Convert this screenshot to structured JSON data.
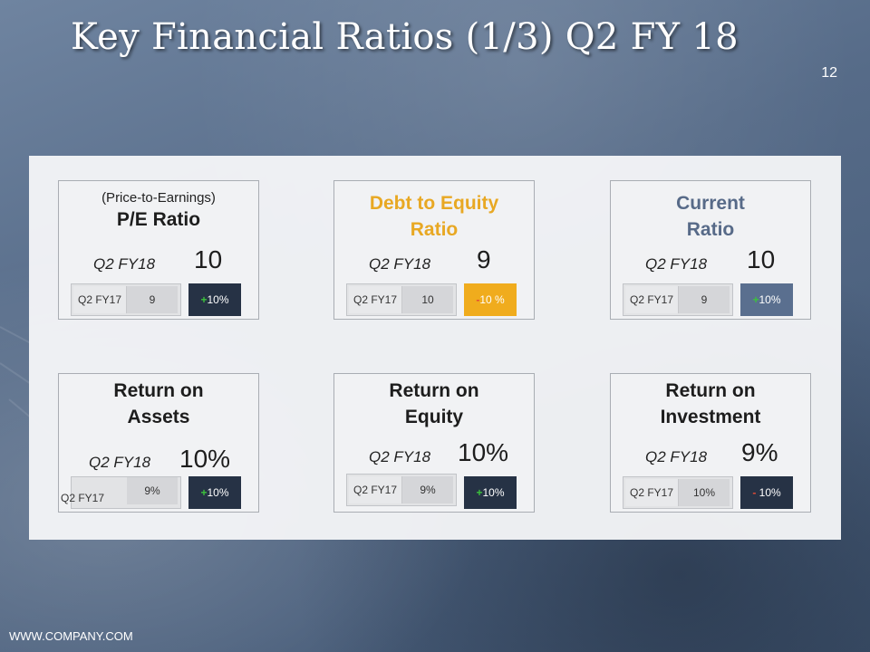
{
  "slide": {
    "title": "Key Financial Ratios (1/3) Q2 FY 18",
    "page_number": "12",
    "footer": "WWW.COMPANY.COM"
  },
  "cards": [
    {
      "subtitle": "(Price-to-Earnings)",
      "title": "P/E Ratio",
      "current_label": "Q2 FY18",
      "current_value": "10",
      "previous_label": "Q2 FY17",
      "previous_value": "9",
      "change_sign": "+",
      "change_value": "10%"
    },
    {
      "title": "Debt to Equity\nRatio",
      "current_label": "Q2 FY18",
      "current_value": "9",
      "previous_label": "Q2 FY17",
      "previous_value": "10",
      "change_sign": "-",
      "change_value": "10 %"
    },
    {
      "title": "Current\nRatio",
      "current_label": "Q2 FY18",
      "current_value": "10",
      "previous_label": "Q2 FY17",
      "previous_value": "9",
      "change_sign": "+",
      "change_value": "10%"
    },
    {
      "title": "Return on\nAssets",
      "current_label": "Q2 FY18",
      "current_value": "10%",
      "previous_label": "Q2 FY17",
      "previous_value": "9%",
      "change_sign": "+",
      "change_value": "10%"
    },
    {
      "title": "Return on\nEquity",
      "current_label": "Q2 FY18",
      "current_value": "10%",
      "previous_label": "Q2 FY17",
      "previous_value": "9%",
      "change_sign": "+",
      "change_value": "10%"
    },
    {
      "title": "Return on\nInvestment",
      "current_label": "Q2 FY18",
      "current_value": "9%",
      "previous_label": "Q2 FY17",
      "previous_value": "10%",
      "change_sign": "-",
      "change_value": " 10%"
    }
  ],
  "colors": {
    "gold_accent": "#f0ac1d",
    "slate_accent": "#5a6f8f",
    "dark_badge": "#263245",
    "positive_sign": "#3cc13c",
    "negative_sign": "#e34b35"
  }
}
